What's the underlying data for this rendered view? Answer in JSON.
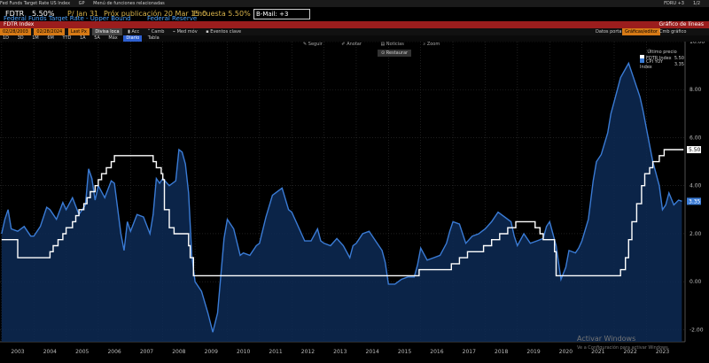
{
  "topbar": {
    "items": [
      "Fed Funds Target Rate US Index",
      "GP",
      "Menú de funciones relacionadas"
    ],
    "right": [
      "FDRU +3",
      "1/2"
    ]
  },
  "info": {
    "ticker": "FDTR",
    "value": "5.50%",
    "date": "P/ Jan 31",
    "next_pub": "Próx publicación 20 Mar 15:0",
    "survey": "Encuesta 5.50%",
    "mail": "B-Mail: +3"
  },
  "subtitle": {
    "left": "Federal Funds Target Rate - Upper Bound",
    "right": "Federal Reserve"
  },
  "redbar": {
    "index": "FDTR Index",
    "right": "Gráfico de líneas"
  },
  "toolbar1": {
    "date_from": "02/28/2003",
    "date_to": "02/28/2024",
    "last_px": "Last Px",
    "local": "Divisa loca",
    "acc": "Acc",
    "camb": "Camb",
    "med_mov": "Med móv",
    "eventos": "Eventos clave",
    "right_a": "Datos portar",
    "right_b": "Gráficas/editor",
    "right_c": "Cmb gráfico"
  },
  "toolbar2": {
    "ranges": [
      "1D",
      "3D",
      "1M",
      "6M",
      "YTD",
      "1A",
      "5A",
      "Máx"
    ],
    "freq": "Diario",
    "tabla": "Tabla"
  },
  "chart_tools": {
    "seguir": "Seguir",
    "anotar": "Anotar",
    "noticias": "Noticias",
    "zoom": "Zoom",
    "restaurar": "Restaurar"
  },
  "legend": {
    "title": "Último precio",
    "items": [
      {
        "name": "FDTR Index",
        "value": "5.50",
        "color": "#ffffff"
      },
      {
        "name": "CPI YOY Index",
        "value": "3.35",
        "color": "#3a7bd5"
      }
    ]
  },
  "chart_data": {
    "type": "line",
    "x_labels": [
      "2003",
      "2004",
      "2005",
      "2006",
      "2007",
      "2008",
      "2009",
      "2010",
      "2011",
      "2012",
      "2013",
      "2014",
      "2015",
      "2016",
      "2017",
      "2018",
      "2019",
      "2020",
      "2021",
      "2022",
      "2023"
    ],
    "y_ticks": [
      "10.00",
      "8.00",
      "6.00",
      "4.00",
      "2.00",
      "0.00",
      "-2.00"
    ],
    "ylim": [
      -2.5,
      10
    ],
    "series": [
      {
        "name": "FDTR Index",
        "color": "#ffffff",
        "last": "5.50",
        "values": [
          [
            2003.0,
            1.75
          ],
          [
            2003.5,
            1.0
          ],
          [
            2004.5,
            1.25
          ],
          [
            2004.6,
            1.5
          ],
          [
            2004.75,
            1.75
          ],
          [
            2004.9,
            2.0
          ],
          [
            2005.0,
            2.25
          ],
          [
            2005.2,
            2.5
          ],
          [
            2005.3,
            2.75
          ],
          [
            2005.4,
            3.0
          ],
          [
            2005.55,
            3.25
          ],
          [
            2005.65,
            3.5
          ],
          [
            2005.75,
            3.75
          ],
          [
            2005.9,
            4.0
          ],
          [
            2006.0,
            4.25
          ],
          [
            2006.1,
            4.5
          ],
          [
            2006.25,
            4.75
          ],
          [
            2006.4,
            5.0
          ],
          [
            2006.5,
            5.25
          ],
          [
            2007.7,
            5.0
          ],
          [
            2007.8,
            4.75
          ],
          [
            2007.95,
            4.5
          ],
          [
            2008.0,
            4.25
          ],
          [
            2008.05,
            3.0
          ],
          [
            2008.2,
            2.25
          ],
          [
            2008.35,
            2.0
          ],
          [
            2008.8,
            1.5
          ],
          [
            2008.85,
            1.0
          ],
          [
            2008.95,
            0.25
          ],
          [
            2015.95,
            0.5
          ],
          [
            2016.95,
            0.75
          ],
          [
            2017.2,
            1.0
          ],
          [
            2017.45,
            1.25
          ],
          [
            2017.95,
            1.5
          ],
          [
            2018.2,
            1.75
          ],
          [
            2018.45,
            2.0
          ],
          [
            2018.7,
            2.25
          ],
          [
            2018.95,
            2.5
          ],
          [
            2019.55,
            2.25
          ],
          [
            2019.7,
            2.0
          ],
          [
            2019.8,
            1.75
          ],
          [
            2020.15,
            1.25
          ],
          [
            2020.2,
            0.25
          ],
          [
            2022.2,
            0.5
          ],
          [
            2022.35,
            1.0
          ],
          [
            2022.45,
            1.75
          ],
          [
            2022.55,
            2.5
          ],
          [
            2022.7,
            3.25
          ],
          [
            2022.85,
            4.0
          ],
          [
            2022.95,
            4.5
          ],
          [
            2023.1,
            4.75
          ],
          [
            2023.2,
            5.0
          ],
          [
            2023.4,
            5.25
          ],
          [
            2023.55,
            5.5
          ],
          [
            2024.15,
            5.5
          ]
        ]
      },
      {
        "name": "CPI YOY Index",
        "color": "#3a7bd5",
        "last": "3.35",
        "values": [
          [
            2003.0,
            2.0
          ],
          [
            2003.1,
            2.6
          ],
          [
            2003.2,
            3.0
          ],
          [
            2003.3,
            2.2
          ],
          [
            2003.5,
            2.1
          ],
          [
            2003.7,
            2.3
          ],
          [
            2003.9,
            1.9
          ],
          [
            2004.0,
            1.9
          ],
          [
            2004.2,
            2.3
          ],
          [
            2004.4,
            3.1
          ],
          [
            2004.5,
            3.0
          ],
          [
            2004.7,
            2.6
          ],
          [
            2004.9,
            3.3
          ],
          [
            2005.0,
            3.0
          ],
          [
            2005.2,
            3.5
          ],
          [
            2005.4,
            2.8
          ],
          [
            2005.6,
            3.2
          ],
          [
            2005.7,
            4.7
          ],
          [
            2005.8,
            4.3
          ],
          [
            2005.9,
            3.4
          ],
          [
            2006.0,
            4.0
          ],
          [
            2006.2,
            3.5
          ],
          [
            2006.4,
            4.2
          ],
          [
            2006.5,
            4.1
          ],
          [
            2006.7,
            2.0
          ],
          [
            2006.8,
            1.3
          ],
          [
            2006.9,
            2.5
          ],
          [
            2007.0,
            2.1
          ],
          [
            2007.2,
            2.8
          ],
          [
            2007.4,
            2.7
          ],
          [
            2007.6,
            2.0
          ],
          [
            2007.7,
            2.8
          ],
          [
            2007.8,
            4.3
          ],
          [
            2007.9,
            4.1
          ],
          [
            2008.0,
            4.3
          ],
          [
            2008.2,
            4.0
          ],
          [
            2008.4,
            4.2
          ],
          [
            2008.5,
            5.5
          ],
          [
            2008.6,
            5.4
          ],
          [
            2008.7,
            4.9
          ],
          [
            2008.8,
            3.7
          ],
          [
            2008.9,
            1.1
          ],
          [
            2009.0,
            0.0
          ],
          [
            2009.2,
            -0.4
          ],
          [
            2009.4,
            -1.3
          ],
          [
            2009.55,
            -2.1
          ],
          [
            2009.7,
            -1.3
          ],
          [
            2009.9,
            1.8
          ],
          [
            2010.0,
            2.6
          ],
          [
            2010.2,
            2.2
          ],
          [
            2010.4,
            1.1
          ],
          [
            2010.5,
            1.2
          ],
          [
            2010.7,
            1.1
          ],
          [
            2010.9,
            1.5
          ],
          [
            2011.0,
            1.6
          ],
          [
            2011.2,
            2.7
          ],
          [
            2011.4,
            3.6
          ],
          [
            2011.6,
            3.8
          ],
          [
            2011.7,
            3.9
          ],
          [
            2011.9,
            3.0
          ],
          [
            2012.0,
            2.9
          ],
          [
            2012.2,
            2.3
          ],
          [
            2012.4,
            1.7
          ],
          [
            2012.6,
            1.7
          ],
          [
            2012.8,
            2.2
          ],
          [
            2012.9,
            1.7
          ],
          [
            2013.0,
            1.6
          ],
          [
            2013.2,
            1.5
          ],
          [
            2013.4,
            1.8
          ],
          [
            2013.6,
            1.5
          ],
          [
            2013.8,
            1.0
          ],
          [
            2013.9,
            1.5
          ],
          [
            2014.0,
            1.6
          ],
          [
            2014.2,
            2.0
          ],
          [
            2014.4,
            2.1
          ],
          [
            2014.6,
            1.7
          ],
          [
            2014.8,
            1.3
          ],
          [
            2014.9,
            0.8
          ],
          [
            2015.0,
            -0.1
          ],
          [
            2015.2,
            -0.1
          ],
          [
            2015.4,
            0.1
          ],
          [
            2015.6,
            0.2
          ],
          [
            2015.8,
            0.2
          ],
          [
            2015.9,
            0.7
          ],
          [
            2016.0,
            1.4
          ],
          [
            2016.2,
            0.9
          ],
          [
            2016.4,
            1.0
          ],
          [
            2016.6,
            1.1
          ],
          [
            2016.8,
            1.6
          ],
          [
            2016.9,
            2.1
          ],
          [
            2017.0,
            2.5
          ],
          [
            2017.2,
            2.4
          ],
          [
            2017.4,
            1.6
          ],
          [
            2017.6,
            1.9
          ],
          [
            2017.8,
            2.0
          ],
          [
            2017.9,
            2.1
          ],
          [
            2018.0,
            2.2
          ],
          [
            2018.2,
            2.5
          ],
          [
            2018.4,
            2.9
          ],
          [
            2018.6,
            2.7
          ],
          [
            2018.8,
            2.5
          ],
          [
            2018.9,
            1.9
          ],
          [
            2019.0,
            1.5
          ],
          [
            2019.2,
            2.0
          ],
          [
            2019.4,
            1.6
          ],
          [
            2019.6,
            1.7
          ],
          [
            2019.8,
            1.8
          ],
          [
            2019.9,
            2.3
          ],
          [
            2020.0,
            2.5
          ],
          [
            2020.2,
            1.5
          ],
          [
            2020.35,
            0.1
          ],
          [
            2020.5,
            0.6
          ],
          [
            2020.6,
            1.3
          ],
          [
            2020.8,
            1.2
          ],
          [
            2020.9,
            1.4
          ],
          [
            2021.0,
            1.7
          ],
          [
            2021.2,
            2.6
          ],
          [
            2021.35,
            4.2
          ],
          [
            2021.45,
            5.0
          ],
          [
            2021.6,
            5.3
          ],
          [
            2021.8,
            6.2
          ],
          [
            2021.9,
            7.0
          ],
          [
            2022.0,
            7.5
          ],
          [
            2022.2,
            8.5
          ],
          [
            2022.45,
            9.1
          ],
          [
            2022.6,
            8.5
          ],
          [
            2022.8,
            7.7
          ],
          [
            2022.9,
            7.1
          ],
          [
            2023.0,
            6.4
          ],
          [
            2023.2,
            5.0
          ],
          [
            2023.4,
            4.0
          ],
          [
            2023.5,
            3.0
          ],
          [
            2023.6,
            3.2
          ],
          [
            2023.7,
            3.7
          ],
          [
            2023.85,
            3.2
          ],
          [
            2024.0,
            3.4
          ],
          [
            2024.1,
            3.35
          ]
        ]
      }
    ]
  },
  "watermark": {
    "line1": "Activar Windows",
    "line2": "Ve a Configuración para activar Windows."
  }
}
